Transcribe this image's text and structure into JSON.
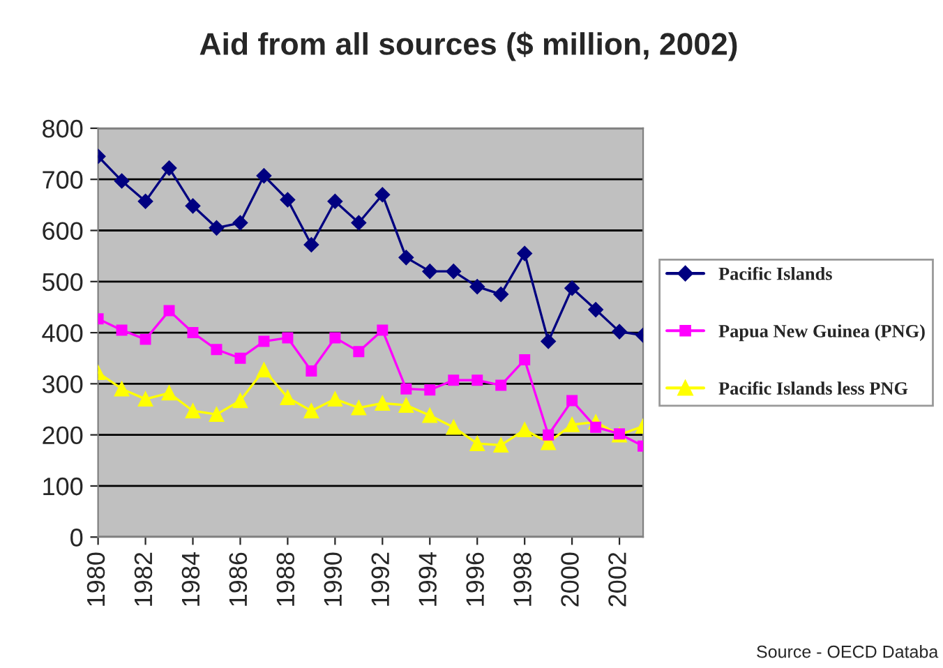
{
  "chart_data": {
    "type": "line",
    "title": "Aid from all sources ($ million, 2002)",
    "x": [
      1980,
      1981,
      1982,
      1983,
      1984,
      1985,
      1986,
      1987,
      1988,
      1989,
      1990,
      1991,
      1992,
      1993,
      1994,
      1995,
      1996,
      1997,
      1998,
      1999,
      2000,
      2001,
      2002,
      2003
    ],
    "series": [
      {
        "name": "Pacific Islands",
        "color": "#000080",
        "marker": "diamond",
        "values": [
          745,
          697,
          657,
          722,
          648,
          605,
          615,
          707,
          660,
          572,
          657,
          615,
          670,
          547,
          520,
          520,
          490,
          475,
          555,
          383,
          487,
          445,
          402,
          395
        ]
      },
      {
        "name": "Papua New Guinea (PNG)",
        "color": "#ff00ff",
        "marker": "square",
        "values": [
          427,
          405,
          387,
          443,
          400,
          367,
          350,
          383,
          390,
          325,
          390,
          363,
          405,
          290,
          288,
          307,
          307,
          297,
          347,
          200,
          267,
          215,
          202,
          178
        ]
      },
      {
        "name": "Pacific Islands less PNG",
        "color": "#ffff00",
        "marker": "triangle",
        "values": [
          322,
          290,
          270,
          282,
          247,
          240,
          267,
          327,
          273,
          247,
          270,
          253,
          262,
          258,
          238,
          215,
          183,
          180,
          210,
          185,
          220,
          225,
          200,
          217
        ]
      }
    ],
    "xlim": [
      1980,
      2003
    ],
    "xticks": [
      1980,
      1982,
      1984,
      1986,
      1988,
      1990,
      1992,
      1994,
      1996,
      1998,
      2000,
      2002
    ],
    "ylim": [
      0,
      800
    ],
    "yticks": [
      0,
      100,
      200,
      300,
      400,
      500,
      600,
      700,
      800
    ],
    "grid": "y",
    "legend": "right",
    "annotations": [
      "Source - OECD Databa"
    ]
  }
}
